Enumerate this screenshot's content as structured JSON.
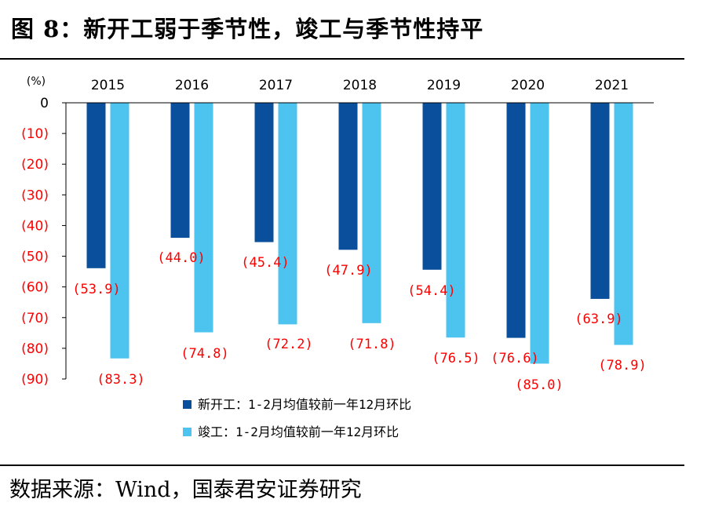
{
  "header": {
    "title": "图 8：新开工弱于季节性，竣工与季节性持平"
  },
  "footer": {
    "source": "数据来源：Wind，国泰君安证券研究"
  },
  "chart_data": {
    "type": "bar",
    "title": "图 8：新开工弱于季节性，竣工与季节性持平",
    "ylabel": "(%)",
    "xlabel": "",
    "ylim": [
      -90,
      0
    ],
    "yticks": [
      0,
      -10,
      -20,
      -30,
      -40,
      -50,
      -60,
      -70,
      -80,
      -90
    ],
    "ytick_labels": [
      "0",
      "(10)",
      "(20)",
      "(30)",
      "(40)",
      "(50)",
      "(60)",
      "(70)",
      "(80)",
      "(90)"
    ],
    "categories": [
      "2015",
      "2016",
      "2017",
      "2018",
      "2019",
      "2020",
      "2021"
    ],
    "series": [
      {
        "name": "新开工：1-2月均值较前一年12月环比",
        "color": "#0a4f9b",
        "values": [
          -53.9,
          -44.0,
          -45.4,
          -47.9,
          -54.4,
          -76.6,
          -63.9
        ],
        "labels": [
          "(53.9)",
          "(44.0)",
          "(45.4)",
          "(47.9)",
          "(54.4)",
          "(76.6)",
          "(63.9)"
        ]
      },
      {
        "name": "竣工：1-2月均值较前一年12月环比",
        "color": "#4dc3f0",
        "values": [
          -83.3,
          -74.8,
          -72.2,
          -71.8,
          -76.5,
          -85.0,
          -78.9
        ],
        "labels": [
          "(83.3)",
          "(74.8)",
          "(72.2)",
          "(71.8)",
          "(76.5)",
          "(85.0)",
          "(78.9)"
        ]
      }
    ],
    "legend_position": "bottom-center",
    "grid": false
  }
}
